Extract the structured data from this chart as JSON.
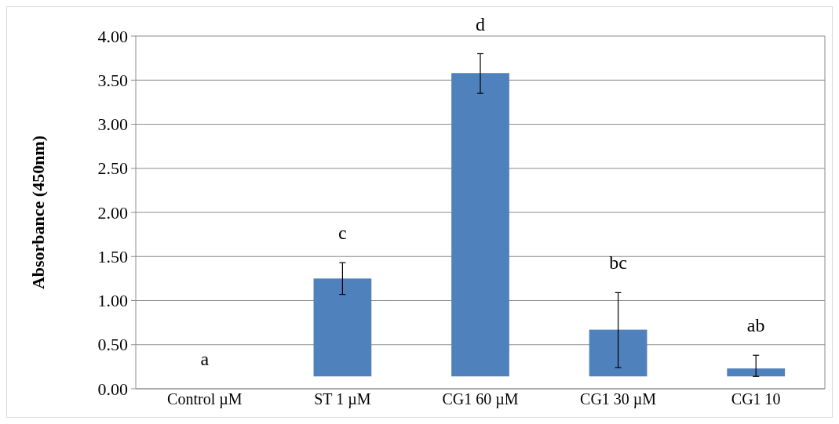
{
  "chart_data": {
    "type": "bar",
    "ylabel": "Absorbance (450nm)",
    "categories": [
      "Control µM",
      "ST 1 µM",
      "CG1 60 µM",
      "CG1 30 µM",
      "CG1 10"
    ],
    "values": [
      null,
      1.11,
      3.44,
      0.53,
      0.09
    ],
    "base": [
      null,
      0.14,
      0.14,
      0.14,
      0.14
    ],
    "color": "#4f81bd",
    "errors": [
      null,
      [
        1.07,
        1.43
      ],
      [
        3.35,
        3.8
      ],
      [
        0.24,
        1.09
      ],
      [
        0.14,
        0.38
      ]
    ],
    "ylim": [
      0,
      4
    ],
    "yticks": [
      {
        "value": 0,
        "label": "0.00"
      },
      {
        "value": 0.5,
        "label": "0.50"
      },
      {
        "value": 1,
        "label": "1.00"
      },
      {
        "value": 1.5,
        "label": "1.50"
      },
      {
        "value": 2,
        "label": "2.00"
      },
      {
        "value": 2.5,
        "label": "2.50"
      },
      {
        "value": 3,
        "label": "3.00"
      },
      {
        "value": 3.5,
        "label": "3.50"
      },
      {
        "value": 4,
        "label": "4.00"
      }
    ],
    "grid": "y",
    "annotations": [
      "a",
      "c",
      "d",
      "bc",
      "ab"
    ]
  }
}
